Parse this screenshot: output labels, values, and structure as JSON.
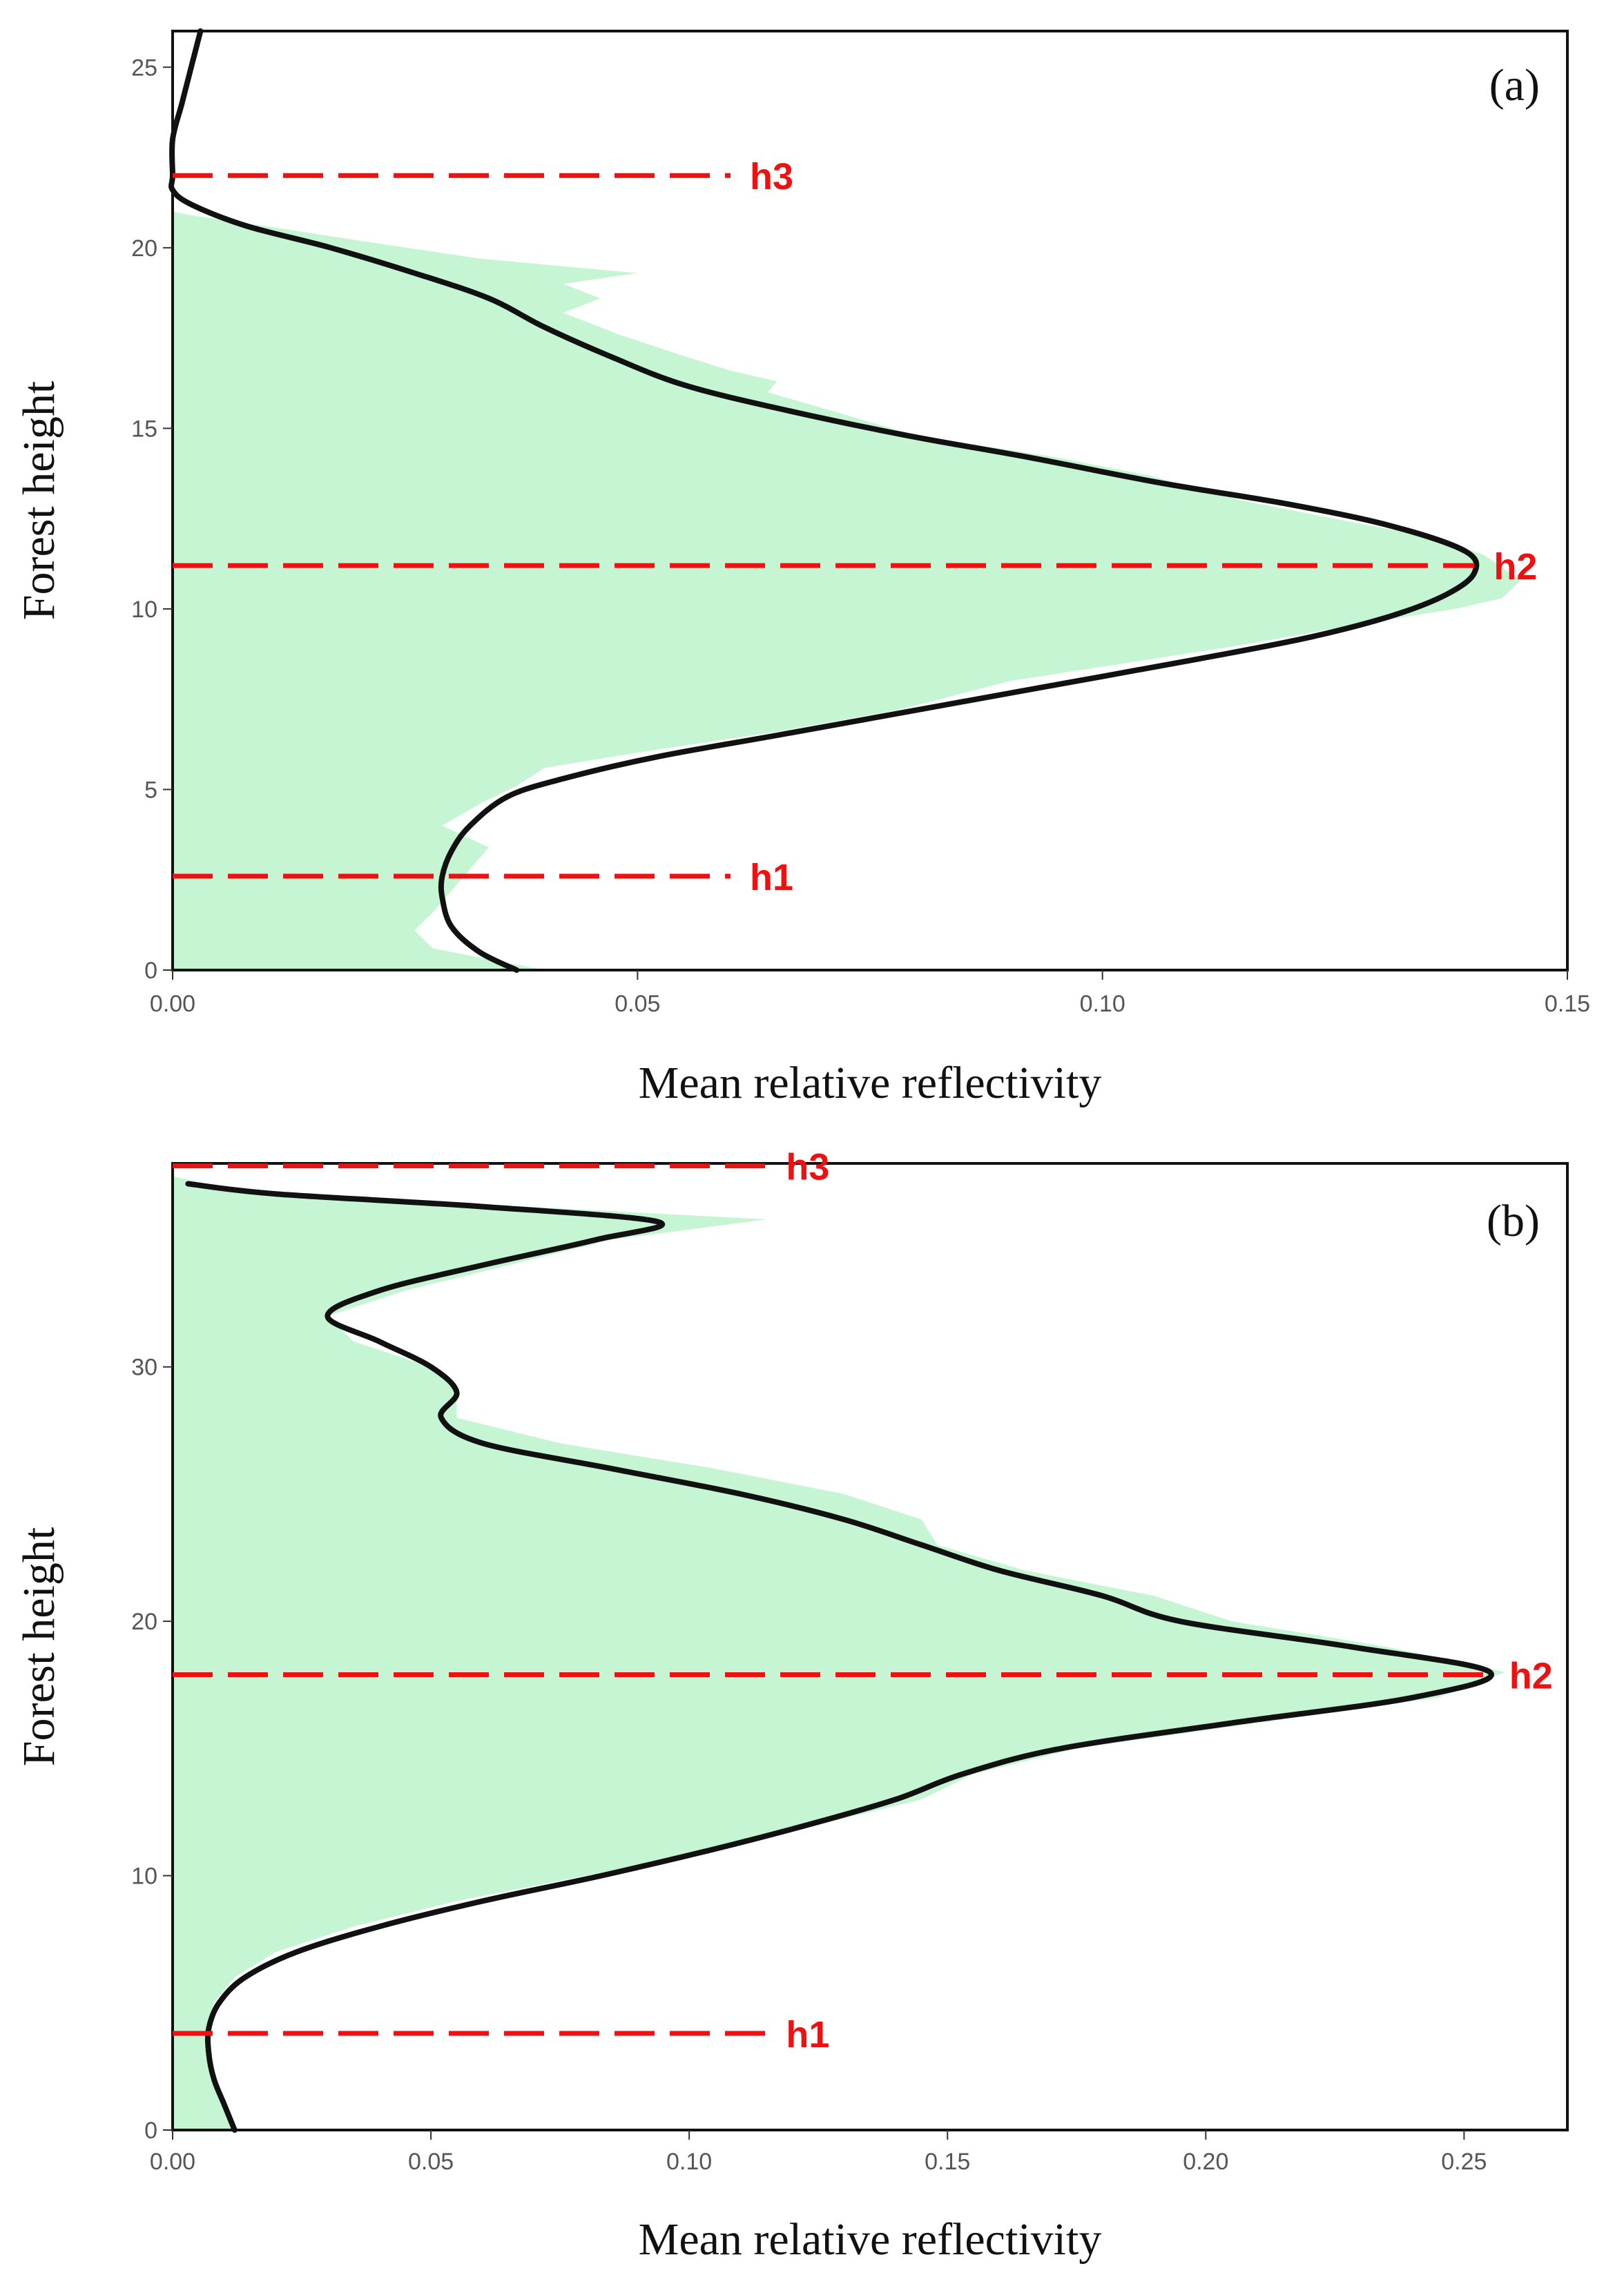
{
  "colors": {
    "fill": "#c6f5d3",
    "profile": "#111111",
    "ref_line": "#ee1111",
    "frame": "#111111"
  },
  "chart_data": [
    {
      "type": "area",
      "panel_label": "(a)",
      "xlabel": "Mean relative reflectivity",
      "ylabel": "Forest height",
      "xlim": [
        0,
        0.15
      ],
      "ylim": [
        0,
        26
      ],
      "xticks": [
        0,
        0.05,
        0.1,
        0.15
      ],
      "xtick_labels": [
        "0.00",
        "0.05",
        "0.10",
        "0.15"
      ],
      "yticks": [
        0,
        5,
        10,
        15,
        20,
        25
      ],
      "ytick_labels": [
        "0",
        "5",
        "10",
        "15",
        "20",
        "25"
      ],
      "series": [
        {
          "name": "mean relative reflectivity profile",
          "style": "filled",
          "points": [
            [
              0.04,
              0
            ],
            [
              0.028,
              0.6
            ],
            [
              0.026,
              1.1
            ],
            [
              0.028,
              1.6
            ],
            [
              0.03,
              2.2
            ],
            [
              0.032,
              2.8
            ],
            [
              0.034,
              3.4
            ],
            [
              0.029,
              4.0
            ],
            [
              0.033,
              4.6
            ],
            [
              0.037,
              5.1
            ],
            [
              0.04,
              5.6
            ],
            [
              0.052,
              6.1
            ],
            [
              0.065,
              6.6
            ],
            [
              0.078,
              7.2
            ],
            [
              0.09,
              8.0
            ],
            [
              0.105,
              8.6
            ],
            [
              0.115,
              9.0
            ],
            [
              0.128,
              9.6
            ],
            [
              0.138,
              10.0
            ],
            [
              0.143,
              10.3
            ],
            [
              0.145,
              10.8
            ],
            [
              0.141,
              11.5
            ],
            [
              0.135,
              12.0
            ],
            [
              0.125,
              12.5
            ],
            [
              0.115,
              13.0
            ],
            [
              0.105,
              13.7
            ],
            [
              0.095,
              14.2
            ],
            [
              0.08,
              14.8
            ],
            [
              0.072,
              15.4
            ],
            [
              0.064,
              16.0
            ],
            [
              0.065,
              16.3
            ],
            [
              0.06,
              16.6
            ],
            [
              0.055,
              17.0
            ],
            [
              0.048,
              17.6
            ],
            [
              0.042,
              18.2
            ],
            [
              0.046,
              18.6
            ],
            [
              0.042,
              19.0
            ],
            [
              0.05,
              19.3
            ],
            [
              0.033,
              19.7
            ],
            [
              0.02,
              20.2
            ],
            [
              0.01,
              20.6
            ],
            [
              0.002,
              20.9
            ],
            [
              0.0,
              21.0
            ]
          ]
        },
        {
          "name": "smoothed profile",
          "style": "line",
          "points": [
            [
              0.037,
              0
            ],
            [
              0.033,
              0.5
            ],
            [
              0.03,
              1.2
            ],
            [
              0.029,
              2.0
            ],
            [
              0.029,
              2.6
            ],
            [
              0.03,
              3.3
            ],
            [
              0.032,
              4.0
            ],
            [
              0.036,
              4.8
            ],
            [
              0.042,
              5.3
            ],
            [
              0.052,
              5.9
            ],
            [
              0.065,
              6.5
            ],
            [
              0.08,
              7.2
            ],
            [
              0.095,
              7.9
            ],
            [
              0.11,
              8.6
            ],
            [
              0.122,
              9.2
            ],
            [
              0.131,
              9.8
            ],
            [
              0.137,
              10.4
            ],
            [
              0.14,
              11.0
            ],
            [
              0.139,
              11.6
            ],
            [
              0.131,
              12.3
            ],
            [
              0.12,
              12.9
            ],
            [
              0.106,
              13.5
            ],
            [
              0.092,
              14.2
            ],
            [
              0.079,
              14.8
            ],
            [
              0.066,
              15.5
            ],
            [
              0.055,
              16.2
            ],
            [
              0.047,
              17.0
            ],
            [
              0.04,
              17.8
            ],
            [
              0.034,
              18.6
            ],
            [
              0.026,
              19.3
            ],
            [
              0.017,
              20.0
            ],
            [
              0.008,
              20.6
            ],
            [
              0.002,
              21.2
            ],
            [
              0.0,
              21.6
            ],
            [
              0.0,
              22.0
            ],
            [
              0.0,
              23.0
            ],
            [
              0.001,
              24.0
            ],
            [
              0.002,
              25.0
            ],
            [
              0.003,
              26.0
            ]
          ]
        }
      ],
      "reference_lines": [
        {
          "label": "h3",
          "y": 22.0,
          "x_end": 0.06
        },
        {
          "label": "h2",
          "y": 11.2,
          "x_end": 0.14
        },
        {
          "label": "h1",
          "y": 2.6,
          "x_end": 0.06
        }
      ]
    },
    {
      "type": "area",
      "panel_label": "(b)",
      "xlabel": "Mean relative reflectivity",
      "ylabel": "Forest height",
      "xlim": [
        0,
        0.27
      ],
      "ylim": [
        0,
        38
      ],
      "xticks": [
        0,
        0.05,
        0.1,
        0.15,
        0.2,
        0.25
      ],
      "xtick_labels": [
        "0.00",
        "0.05",
        "0.10",
        "0.15",
        "0.20",
        "0.25"
      ],
      "yticks": [
        0,
        10,
        20,
        30
      ],
      "ytick_labels": [
        "0",
        "10",
        "20",
        "30"
      ],
      "series": [
        {
          "name": "mean relative reflectivity profile",
          "style": "filled",
          "points": [
            [
              0.012,
              0
            ],
            [
              0.01,
              1.0
            ],
            [
              0.008,
              2.0
            ],
            [
              0.007,
              3.0
            ],
            [
              0.007,
              4.0
            ],
            [
              0.008,
              5.0
            ],
            [
              0.012,
              6.0
            ],
            [
              0.02,
              7.0
            ],
            [
              0.035,
              8.0
            ],
            [
              0.055,
              9.0
            ],
            [
              0.08,
              10.0
            ],
            [
              0.105,
              11.0
            ],
            [
              0.125,
              12.0
            ],
            [
              0.145,
              13.0
            ],
            [
              0.155,
              14.0
            ],
            [
              0.175,
              15.0
            ],
            [
              0.21,
              16.0
            ],
            [
              0.245,
              17.0
            ],
            [
              0.258,
              18.0
            ],
            [
              0.235,
              19.0
            ],
            [
              0.205,
              20.0
            ],
            [
              0.19,
              21.0
            ],
            [
              0.165,
              22.0
            ],
            [
              0.148,
              23.0
            ],
            [
              0.145,
              24.0
            ],
            [
              0.13,
              25.0
            ],
            [
              0.105,
              26.0
            ],
            [
              0.075,
              27.0
            ],
            [
              0.055,
              28.0
            ],
            [
              0.055,
              29.0
            ],
            [
              0.05,
              30.0
            ],
            [
              0.035,
              31.0
            ],
            [
              0.03,
              32.0
            ],
            [
              0.045,
              33.0
            ],
            [
              0.065,
              34.0
            ],
            [
              0.085,
              35.0
            ],
            [
              0.115,
              35.8
            ],
            [
              0.05,
              36.5
            ],
            [
              0.01,
              37.0
            ],
            [
              0.0,
              37.5
            ]
          ]
        },
        {
          "name": "smoothed profile",
          "style": "line",
          "points": [
            [
              0.012,
              0
            ],
            [
              0.01,
              1.0
            ],
            [
              0.008,
              2.0
            ],
            [
              0.007,
              3.0
            ],
            [
              0.007,
              4.0
            ],
            [
              0.009,
              5.0
            ],
            [
              0.014,
              6.0
            ],
            [
              0.024,
              7.0
            ],
            [
              0.04,
              8.0
            ],
            [
              0.06,
              9.0
            ],
            [
              0.083,
              10.0
            ],
            [
              0.104,
              11.0
            ],
            [
              0.123,
              12.0
            ],
            [
              0.14,
              13.0
            ],
            [
              0.153,
              14.0
            ],
            [
              0.172,
              15.0
            ],
            [
              0.205,
              16.0
            ],
            [
              0.24,
              17.0
            ],
            [
              0.255,
              18.0
            ],
            [
              0.228,
              19.0
            ],
            [
              0.195,
              20.0
            ],
            [
              0.18,
              21.0
            ],
            [
              0.16,
              22.0
            ],
            [
              0.145,
              23.0
            ],
            [
              0.13,
              24.0
            ],
            [
              0.11,
              25.0
            ],
            [
              0.085,
              26.0
            ],
            [
              0.06,
              27.0
            ],
            [
              0.052,
              28.0
            ],
            [
              0.055,
              29.0
            ],
            [
              0.05,
              30.0
            ],
            [
              0.04,
              31.0
            ],
            [
              0.03,
              32.0
            ],
            [
              0.04,
              33.0
            ],
            [
              0.06,
              34.0
            ],
            [
              0.082,
              35.0
            ],
            [
              0.094,
              35.7
            ],
            [
              0.06,
              36.3
            ],
            [
              0.02,
              36.8
            ],
            [
              0.003,
              37.2
            ]
          ]
        }
      ],
      "reference_lines": [
        {
          "label": "h3",
          "y": 37.9,
          "x_end": 0.115
        },
        {
          "label": "h2",
          "y": 17.9,
          "x_end": 0.255
        },
        {
          "label": "h1",
          "y": 3.8,
          "x_end": 0.115
        }
      ]
    }
  ]
}
